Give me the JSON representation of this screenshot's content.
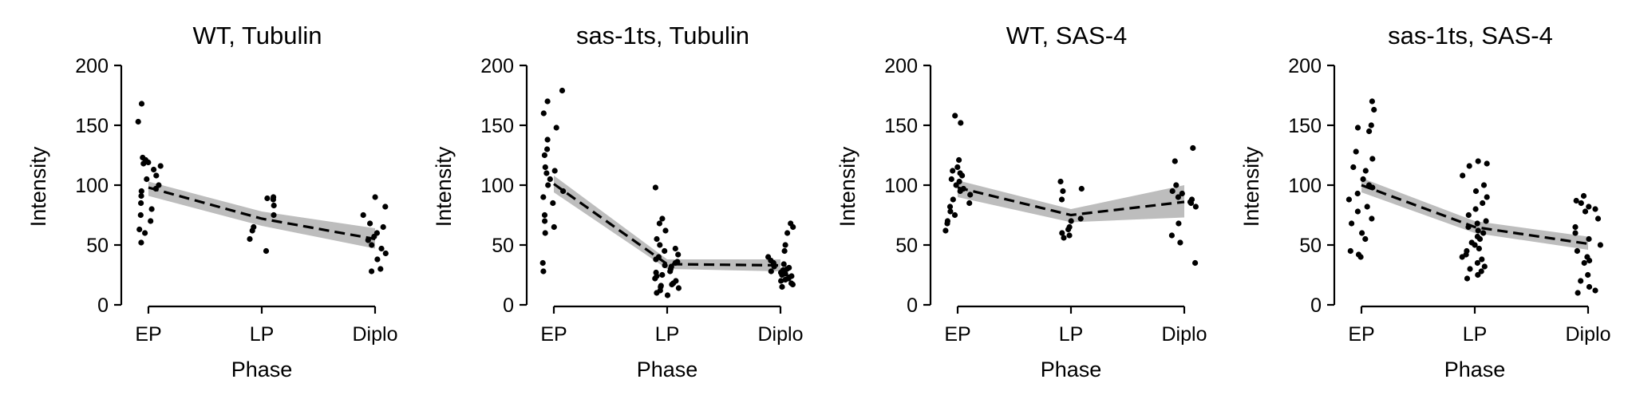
{
  "chart_data": [
    {
      "type": "scatter",
      "title": "WT, Tubulin",
      "xlabel": "Phase",
      "ylabel": "Intensity",
      "categories": [
        "EP",
        "LP",
        "Diplo"
      ],
      "ylim": [
        0,
        200
      ],
      "yticks": [
        0,
        50,
        100,
        150,
        200
      ],
      "mean": [
        98,
        72,
        55
      ],
      "ci_low": [
        91,
        66,
        47
      ],
      "ci_high": [
        103,
        78,
        64
      ],
      "points": [
        [
          168,
          153,
          123,
          121,
          119,
          118,
          116,
          113,
          108,
          105,
          100,
          97,
          95,
          91,
          85,
          80,
          75,
          70,
          63,
          60,
          52
        ],
        [
          90,
          89,
          88,
          83,
          75,
          65,
          62,
          55,
          45
        ],
        [
          90,
          82,
          75,
          68,
          65,
          60,
          57,
          54,
          50,
          47,
          43,
          38,
          30,
          28
        ]
      ]
    },
    {
      "type": "scatter",
      "title": "sas-1ts, Tubulin",
      "xlabel": "Phase",
      "ylabel": "Intensity",
      "categories": [
        "EP",
        "LP",
        "Diplo"
      ],
      "ylim": [
        0,
        200
      ],
      "yticks": [
        0,
        50,
        100,
        150,
        200
      ],
      "mean": [
        101,
        34,
        33
      ],
      "ci_low": [
        94,
        30,
        28
      ],
      "ci_high": [
        108,
        38,
        38
      ],
      "points": [
        [
          179,
          170,
          160,
          148,
          138,
          130,
          125,
          115,
          112,
          110,
          105,
          100,
          95,
          90,
          85,
          75,
          70,
          65,
          60,
          35,
          28
        ],
        [
          98,
          72,
          68,
          62,
          55,
          50,
          47,
          45,
          42,
          40,
          38,
          36,
          35,
          33,
          32,
          30,
          28,
          27,
          25,
          24,
          22,
          20,
          18,
          17,
          16,
          15,
          14,
          12,
          10,
          8
        ],
        [
          68,
          65,
          60,
          50,
          45,
          40,
          37,
          35,
          34,
          33,
          32,
          31,
          30,
          29,
          28,
          27,
          26,
          25,
          24,
          23,
          22,
          21,
          20,
          18,
          17,
          15
        ]
      ]
    },
    {
      "type": "scatter",
      "title": "WT, SAS-4",
      "xlabel": "Phase",
      "ylabel": "Intensity",
      "categories": [
        "EP",
        "LP",
        "Diplo"
      ],
      "ylim": [
        0,
        200
      ],
      "yticks": [
        0,
        50,
        100,
        150,
        200
      ],
      "mean": [
        98,
        75,
        86
      ],
      "ci_low": [
        90,
        69,
        73
      ],
      "ci_high": [
        104,
        80,
        100
      ],
      "points": [
        [
          158,
          152,
          121,
          115,
          112,
          110,
          108,
          105,
          103,
          100,
          97,
          95,
          92,
          88,
          85,
          82,
          78,
          75,
          70,
          68,
          62
        ],
        [
          103,
          97,
          95,
          88,
          72,
          70,
          65,
          63,
          60,
          58,
          56
        ],
        [
          131,
          120,
          100,
          95,
          93,
          90,
          88,
          86,
          85,
          82,
          68,
          58,
          52,
          35
        ]
      ]
    },
    {
      "type": "scatter",
      "title": "sas-1ts, SAS-4",
      "xlabel": "Phase",
      "ylabel": "Intensity",
      "categories": [
        "EP",
        "LP",
        "Diplo"
      ],
      "ylim": [
        0,
        200
      ],
      "yticks": [
        0,
        50,
        100,
        150,
        200
      ],
      "mean": [
        100,
        65,
        51
      ],
      "ci_low": [
        94,
        60,
        46
      ],
      "ci_high": [
        106,
        70,
        57
      ],
      "points": [
        [
          170,
          163,
          150,
          148,
          145,
          128,
          122,
          115,
          112,
          105,
          100,
          98,
          93,
          88,
          82,
          78,
          72,
          68,
          60,
          55,
          45,
          42,
          40
        ],
        [
          120,
          118,
          116,
          108,
          100,
          95,
          90,
          85,
          80,
          75,
          70,
          68,
          65,
          62,
          60,
          57,
          55,
          52,
          50,
          47,
          45,
          42,
          40,
          38,
          35,
          32,
          30,
          28,
          25,
          22
        ],
        [
          91,
          87,
          85,
          82,
          80,
          78,
          72,
          65,
          60,
          55,
          50,
          45,
          40,
          37,
          35,
          25,
          20,
          15,
          12,
          10
        ]
      ]
    }
  ]
}
